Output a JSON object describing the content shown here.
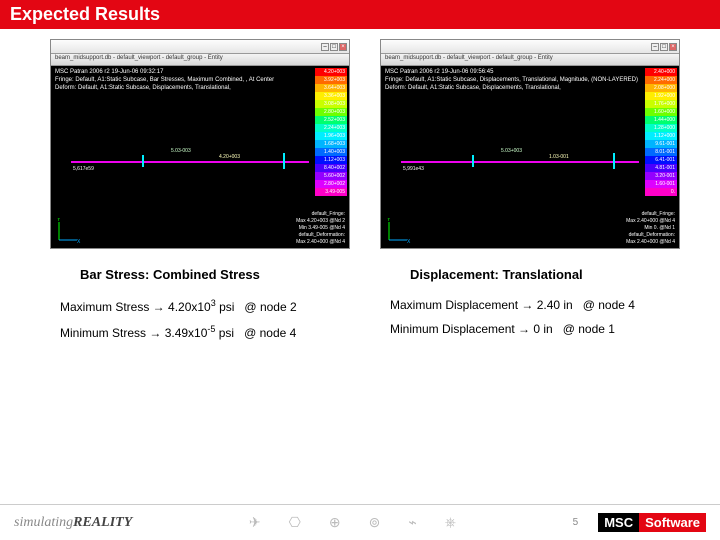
{
  "header": {
    "title": "Expected Results"
  },
  "panels": [
    {
      "toolbar": "beam_midsupport.db - default_viewport - default_group - Entity",
      "top_lines": "MSC Patran 2006 r2 19-Jun-06 09:32:17\nFringe: Default, A1:Static Subcase, Bar Stresses, Maximum Combined, , At Center\nDeform: Default, A1:Static Subcase, Displacements, Translational,",
      "node_a": "5,617e59",
      "node_b": "5.03-003",
      "node_c": "4.20+003",
      "bottom_lines": "default_Fringe:\nMax 4.20+003 @Nd 2\nMin 3.49-005 @Nd 4\ndefault_Deformation:\nMax 2.40+000 @Nd 4",
      "legend": [
        {
          "c": "#ff0000",
          "t": "4.20+003"
        },
        {
          "c": "#ff6a00",
          "t": "3.92+003"
        },
        {
          "c": "#ffb400",
          "t": "3.64+003"
        },
        {
          "c": "#ffee00",
          "t": "3.36+003"
        },
        {
          "c": "#c8ff00",
          "t": "3.08+003"
        },
        {
          "c": "#6eff00",
          "t": "2.80+003"
        },
        {
          "c": "#00ff6e",
          "t": "2.52+003"
        },
        {
          "c": "#00ffc8",
          "t": "2.24+003"
        },
        {
          "c": "#00eeff",
          "t": "1.96+003"
        },
        {
          "c": "#00b4ff",
          "t": "1.68+003"
        },
        {
          "c": "#006aff",
          "t": "1.40+003"
        },
        {
          "c": "#0010ff",
          "t": "1.12+003"
        },
        {
          "c": "#4a00ff",
          "t": "8.40+002"
        },
        {
          "c": "#9400ff",
          "t": "5.60+002"
        },
        {
          "c": "#de00ff",
          "t": "2.80+002"
        },
        {
          "c": "#ff00c8",
          "t": "3.49-005"
        }
      ],
      "caption": "Bar Stress: Combined Stress",
      "metrics": [
        {
          "label": "Maximum Stress → ",
          "value": "4.20x10",
          "exp": "3",
          "unit": " psi",
          "loc": "@ node 2"
        },
        {
          "label": "Minimum Stress → ",
          "value": "3.49x10",
          "exp": "-5",
          "unit": " psi",
          "loc": "@ node 4"
        }
      ]
    },
    {
      "toolbar": "beam_midsupport.db - default_viewport - default_group - Entity",
      "top_lines": "MSC Patran 2006 r2 19-Jun-06 09:56:45\nFringe: Default, A1:Static Subcase, Displacements, Translational, Magnitude, (NON-LAYERED)\nDeform: Default, A1:Static Subcase, Displacements, Translational,",
      "node_a": "5,991e43",
      "node_b": "5.03+003",
      "node_c": "1.03-001",
      "bottom_lines": "default_Fringe:\nMax 2.40+000 @Nd 4\nMin 0. @Nd 1\ndefault_Deformation:\nMax 2.40+000 @Nd 4",
      "legend": [
        {
          "c": "#ff0000",
          "t": "2.40+000"
        },
        {
          "c": "#ff6a00",
          "t": "2.24+000"
        },
        {
          "c": "#ffb400",
          "t": "2.08+000"
        },
        {
          "c": "#ffee00",
          "t": "1.92+000"
        },
        {
          "c": "#c8ff00",
          "t": "1.76+000"
        },
        {
          "c": "#6eff00",
          "t": "1.60+000"
        },
        {
          "c": "#00ff6e",
          "t": "1.44+000"
        },
        {
          "c": "#00ffc8",
          "t": "1.28+000"
        },
        {
          "c": "#00eeff",
          "t": "1.12+000"
        },
        {
          "c": "#00b4ff",
          "t": "9.61-001"
        },
        {
          "c": "#006aff",
          "t": "8.01-001"
        },
        {
          "c": "#0010ff",
          "t": "6.41-001"
        },
        {
          "c": "#4a00ff",
          "t": "4.81-001"
        },
        {
          "c": "#9400ff",
          "t": "3.20-001"
        },
        {
          "c": "#de00ff",
          "t": "1.60-001"
        },
        {
          "c": "#ff00c8",
          "t": "0."
        }
      ],
      "caption": "Displacement: Translational",
      "metrics": [
        {
          "label": "Maximum Displacement → ",
          "value": "2.40 in",
          "exp": "",
          "unit": "",
          "loc": "@ node 4"
        },
        {
          "label": "Minimum Displacement → ",
          "value": "0 in",
          "exp": "",
          "unit": "",
          "loc": "@ node 1"
        }
      ]
    }
  ],
  "footer": {
    "sim_pre": "simulating",
    "sim_bold": "REALITY",
    "icons": [
      "✈",
      "⎔",
      "⊕",
      "⊚",
      "⌁",
      "⎈"
    ],
    "page": "5",
    "logo_a": "MSC",
    "logo_b": "Software"
  }
}
